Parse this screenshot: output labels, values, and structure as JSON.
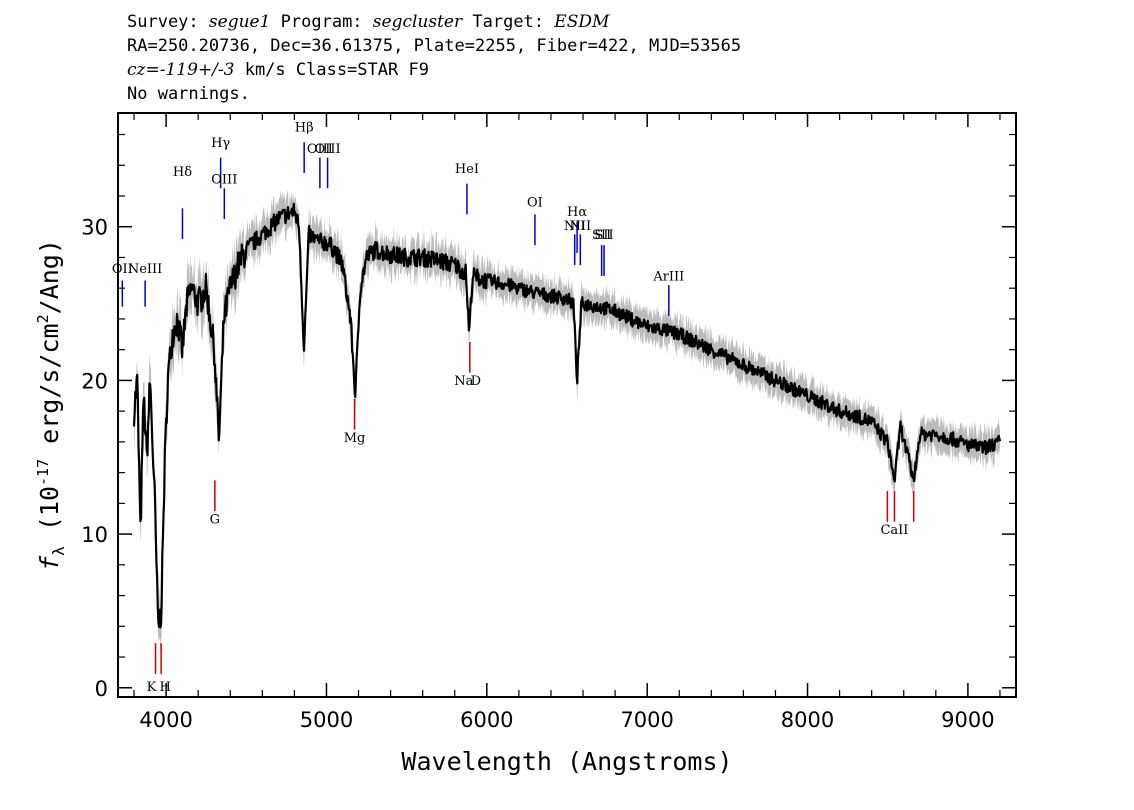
{
  "header": {
    "survey_label": "Survey:",
    "survey_value": "segue1",
    "program_label": "Program:",
    "program_value": "segcluster",
    "target_label": "Target:",
    "target_value": "ESDM",
    "line2": "RA=250.20736, Dec=36.61375, Plate=2255, Fiber=422, MJD=53565",
    "cz_prefix": "cz=",
    "cz_value": "-119+/-3",
    "cz_suffix": " km/s Class=STAR F9",
    "warnings": "No warnings."
  },
  "chart_data": {
    "type": "line",
    "xlabel": "Wavelength (Angstroms)",
    "ylabel_parts": {
      "f": "f",
      "sub": "λ",
      "open": " (10",
      "exp": "-17",
      "mid": " erg/s/cm",
      "exp2": "2",
      "close": "/Ang)"
    },
    "xlim": [
      3700,
      9300
    ],
    "ylim": [
      -0.6,
      37.4
    ],
    "x_ticks": [
      4000,
      5000,
      6000,
      7000,
      8000,
      9000
    ],
    "x_tick_labels": [
      "4000",
      "5000",
      "6000",
      "7000",
      "8000",
      "9000"
    ],
    "y_ticks": [
      0,
      10,
      20,
      30
    ],
    "y_tick_labels": [
      "0",
      "10",
      "20",
      "30"
    ],
    "colors": {
      "flux": "#000000",
      "error_band": "#bbbbbb",
      "emission": "#0000cc",
      "absorption": "#cc0000"
    },
    "continuum": [
      [
        3800,
        18
      ],
      [
        3820,
        20
      ],
      [
        3840,
        10
      ],
      [
        3860,
        19
      ],
      [
        3880,
        15
      ],
      [
        3900,
        20
      ],
      [
        3930,
        12
      ],
      [
        3950,
        4
      ],
      [
        3970,
        5
      ],
      [
        3990,
        14
      ],
      [
        4010,
        20
      ],
      [
        4040,
        23
      ],
      [
        4070,
        24
      ],
      [
        4100,
        22
      ],
      [
        4130,
        25
      ],
      [
        4160,
        26
      ],
      [
        4200,
        25
      ],
      [
        4250,
        26
      ],
      [
        4300,
        22
      ],
      [
        4330,
        16
      ],
      [
        4360,
        24
      ],
      [
        4400,
        26
      ],
      [
        4450,
        27.5
      ],
      [
        4500,
        28.5
      ],
      [
        4550,
        29
      ],
      [
        4600,
        29.5
      ],
      [
        4650,
        30
      ],
      [
        4700,
        30.5
      ],
      [
        4750,
        30.8
      ],
      [
        4800,
        31
      ],
      [
        4830,
        30
      ],
      [
        4860,
        22
      ],
      [
        4890,
        29.5
      ],
      [
        4950,
        29
      ],
      [
        5000,
        29
      ],
      [
        5050,
        28.5
      ],
      [
        5100,
        27.5
      ],
      [
        5150,
        24
      ],
      [
        5180,
        19
      ],
      [
        5210,
        26
      ],
      [
        5250,
        28
      ],
      [
        5300,
        28.5
      ],
      [
        5400,
        28.2
      ],
      [
        5500,
        28
      ],
      [
        5600,
        28
      ],
      [
        5700,
        27.8
      ],
      [
        5800,
        27.5
      ],
      [
        5870,
        27
      ],
      [
        5890,
        23
      ],
      [
        5910,
        26.8
      ],
      [
        6000,
        26.5
      ],
      [
        6100,
        26.3
      ],
      [
        6200,
        26
      ],
      [
        6300,
        25.7
      ],
      [
        6400,
        25.5
      ],
      [
        6500,
        25.3
      ],
      [
        6540,
        25
      ],
      [
        6563,
        20
      ],
      [
        6590,
        25
      ],
      [
        6700,
        24.8
      ],
      [
        6800,
        24.5
      ],
      [
        6900,
        24
      ],
      [
        7000,
        23.5
      ],
      [
        7100,
        23.3
      ],
      [
        7200,
        23
      ],
      [
        7300,
        22.5
      ],
      [
        7400,
        22
      ],
      [
        7500,
        21.5
      ],
      [
        7600,
        21
      ],
      [
        7700,
        20.5
      ],
      [
        7800,
        20
      ],
      [
        7900,
        19.5
      ],
      [
        8000,
        19
      ],
      [
        8100,
        18.5
      ],
      [
        8200,
        18
      ],
      [
        8300,
        17.7
      ],
      [
        8400,
        17.3
      ],
      [
        8498,
        16
      ],
      [
        8542,
        13.5
      ],
      [
        8580,
        17
      ],
      [
        8662,
        13.5
      ],
      [
        8700,
        16.5
      ],
      [
        8800,
        16.5
      ],
      [
        8900,
        16.2
      ],
      [
        9000,
        15.8
      ],
      [
        9100,
        15.6
      ],
      [
        9200,
        16
      ]
    ],
    "emission_lines": [
      {
        "label": "OII",
        "wave": 3727,
        "top": 26.5,
        "bottom": 24.8,
        "label_y": 27
      },
      {
        "label": "NeIII",
        "wave": 3869,
        "top": 26.5,
        "bottom": 24.8,
        "label_y": 27
      },
      {
        "label": "Hδ",
        "wave": 4102,
        "top": 31.2,
        "bottom": 29.2,
        "label_y": 33.3
      },
      {
        "label": "Hγ",
        "wave": 4340,
        "top": 34.5,
        "bottom": 32.5,
        "label_y": 35.2
      },
      {
        "label": "OIII",
        "wave": 4363,
        "top": 32.5,
        "bottom": 30.5,
        "label_y": 32.8
      },
      {
        "label": "Hβ",
        "wave": 4861,
        "top": 35.5,
        "bottom": 33.5,
        "label_y": 36.2
      },
      {
        "label": "OIII",
        "wave": 4959,
        "top": 34.5,
        "bottom": 32.5,
        "label_y": 34.8
      },
      {
        "label": "OIII",
        "wave": 5007,
        "top": 34.5,
        "bottom": 32.5,
        "label_y": 34.8
      },
      {
        "label": "HeI",
        "wave": 5876,
        "top": 32.8,
        "bottom": 30.8,
        "label_y": 33.5
      },
      {
        "label": "OI",
        "wave": 6300,
        "top": 30.8,
        "bottom": 28.8,
        "label_y": 31.3
      },
      {
        "label": "NII",
        "wave": 6548,
        "top": 29.5,
        "bottom": 27.5,
        "label_y": 29.8
      },
      {
        "label": "Hα",
        "wave": 6563,
        "top": 30.3,
        "bottom": 28.3,
        "label_y": 30.7
      },
      {
        "label": "NII",
        "wave": 6583,
        "top": 29.5,
        "bottom": 27.5,
        "label_y": 29.8
      },
      {
        "label": "SII",
        "wave": 6716,
        "top": 28.8,
        "bottom": 26.8,
        "label_y": 29.2
      },
      {
        "label": "SII",
        "wave": 6731,
        "top": 28.8,
        "bottom": 26.8,
        "label_y": 29.2
      },
      {
        "label": "ArIII",
        "wave": 7135,
        "top": 26.2,
        "bottom": 24.2,
        "label_y": 26.5
      }
    ],
    "absorption_lines": [
      {
        "label": "K",
        "wave": 3934,
        "top": 2.9,
        "bottom": 0.9,
        "label_y": -0.2
      },
      {
        "label": "H",
        "wave": 3969,
        "top": 2.9,
        "bottom": 0.9,
        "label_y": -0.2
      },
      {
        "label": "G",
        "wave": 4304,
        "top": 13.5,
        "bottom": 11.5,
        "label_y": 10.7
      },
      {
        "label": "Mg",
        "wave": 5175,
        "top": 18.8,
        "bottom": 16.8,
        "label_y": 16
      },
      {
        "label": "Na",
        "wave": 5894,
        "top": 22.5,
        "bottom": 20.5,
        "label_y": 19.7
      },
      {
        "label": "D",
        "wave": 5894,
        "top": 22.5,
        "bottom": 20.5,
        "label_y": 19.7
      },
      {
        "label": "CaII",
        "wave": 8498,
        "top": 12.8,
        "bottom": 10.8,
        "label_y": 10
      },
      {
        "label": "CaII",
        "wave": 8542,
        "top": 12.8,
        "bottom": 10.8,
        "label_y": 10
      },
      {
        "label": "CaII",
        "wave": 8662,
        "top": 12.8,
        "bottom": 10.8,
        "label_y": 10
      }
    ]
  }
}
